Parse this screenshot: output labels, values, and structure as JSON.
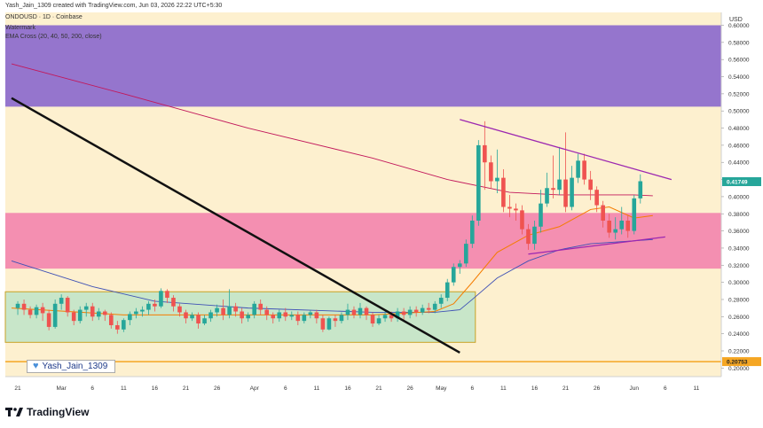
{
  "header": {
    "creator": "Yash_Jain_1309 created with TradingView.com, Jun 03, 2026 22:22 UTC+5:30",
    "symbol": "ONDOUSD · 1D · Coinbase",
    "indicator1": "Watermark",
    "indicator2": "EMA Cross (20, 40, 50, 200, close)"
  },
  "watermark": {
    "label": "Yash_Jain_1309",
    "icon": "heart-icon"
  },
  "footer": {
    "brand": "TradingView",
    "logo": "tradingview-logo-icon"
  },
  "chart_data": {
    "type": "candlestick",
    "currency": "USD",
    "ylim": [
      0.19,
      0.615
    ],
    "y_ticks": [
      "0.60000",
      "0.58000",
      "0.56000",
      "0.54000",
      "0.52000",
      "0.50000",
      "0.48000",
      "0.46000",
      "0.44000",
      "0.42000",
      "0.40000",
      "0.38000",
      "0.36000",
      "0.34000",
      "0.32000",
      "0.30000",
      "0.28000",
      "0.26000",
      "0.24000",
      "0.22000",
      "0.20000"
    ],
    "x_ticks": [
      {
        "label": "21",
        "day": -7
      },
      {
        "label": "Mar",
        "day": 0
      },
      {
        "label": "6",
        "day": 5
      },
      {
        "label": "11",
        "day": 10
      },
      {
        "label": "16",
        "day": 15
      },
      {
        "label": "21",
        "day": 20
      },
      {
        "label": "26",
        "day": 25
      },
      {
        "label": "Apr",
        "day": 31
      },
      {
        "label": "6",
        "day": 36
      },
      {
        "label": "11",
        "day": 41
      },
      {
        "label": "16",
        "day": 46
      },
      {
        "label": "21",
        "day": 51
      },
      {
        "label": "26",
        "day": 56
      },
      {
        "label": "May",
        "day": 61
      },
      {
        "label": "6",
        "day": 66
      },
      {
        "label": "11",
        "day": 71
      },
      {
        "label": "16",
        "day": 76
      },
      {
        "label": "21",
        "day": 81
      },
      {
        "label": "26",
        "day": 86
      },
      {
        "label": "Jun",
        "day": 92
      },
      {
        "label": "6",
        "day": 97
      },
      {
        "label": "11",
        "day": 102
      }
    ],
    "last_price": "0.41749",
    "level_price": "0.20753",
    "colors": {
      "up": "#26a69a",
      "down": "#ef5350",
      "zone_purple": "#9575cd",
      "zone_pink": "#f48fb1",
      "zone_green": "#c8e6c9",
      "level": "#f5a623",
      "trend": "#111111",
      "pattern": "#9c27b0"
    },
    "zones": [
      {
        "name": "purple",
        "y1": 0.505,
        "y2": 0.6
      },
      {
        "name": "pink",
        "y1": 0.316,
        "y2": 0.381
      },
      {
        "name": "green",
        "y1": 0.23,
        "y2": 0.289
      }
    ],
    "level": 0.2075,
    "trendline": [
      [
        -8,
        0.515
      ],
      [
        64,
        0.218
      ]
    ],
    "wedge_upper": [
      [
        64,
        0.49
      ],
      [
        98,
        0.42
      ]
    ],
    "wedge_lower": [
      [
        75,
        0.333
      ],
      [
        97,
        0.353
      ]
    ],
    "ema200": [
      [
        -8,
        0.555
      ],
      [
        10,
        0.52
      ],
      [
        30,
        0.48
      ],
      [
        50,
        0.445
      ],
      [
        62,
        0.42
      ],
      [
        72,
        0.405
      ],
      [
        80,
        0.402
      ],
      [
        92,
        0.402
      ],
      [
        95,
        0.401
      ]
    ],
    "ema50": [
      [
        -8,
        0.325
      ],
      [
        5,
        0.295
      ],
      [
        15,
        0.278
      ],
      [
        30,
        0.27
      ],
      [
        50,
        0.265
      ],
      [
        60,
        0.265
      ],
      [
        64,
        0.268
      ],
      [
        66,
        0.28
      ],
      [
        70,
        0.305
      ],
      [
        75,
        0.325
      ],
      [
        80,
        0.338
      ],
      [
        85,
        0.345
      ],
      [
        95,
        0.35
      ]
    ],
    "ema20": [
      [
        -8,
        0.27
      ],
      [
        10,
        0.262
      ],
      [
        30,
        0.262
      ],
      [
        50,
        0.262
      ],
      [
        60,
        0.266
      ],
      [
        63,
        0.275
      ],
      [
        66,
        0.3
      ],
      [
        70,
        0.335
      ],
      [
        75,
        0.355
      ],
      [
        80,
        0.365
      ],
      [
        85,
        0.385
      ],
      [
        88,
        0.388
      ],
      [
        92,
        0.375
      ],
      [
        95,
        0.378
      ]
    ],
    "candles": [
      [
        -7,
        0.27,
        0.275,
        0.262,
        0.278
      ],
      [
        -6,
        0.275,
        0.268,
        0.262,
        0.28
      ],
      [
        -5,
        0.268,
        0.262,
        0.258,
        0.272
      ],
      [
        -4,
        0.262,
        0.271,
        0.258,
        0.274
      ],
      [
        -3,
        0.271,
        0.264,
        0.255,
        0.276
      ],
      [
        -2,
        0.264,
        0.248,
        0.244,
        0.268
      ],
      [
        -1,
        0.248,
        0.275,
        0.246,
        0.28
      ],
      [
        0,
        0.275,
        0.282,
        0.268,
        0.286
      ],
      [
        1,
        0.282,
        0.265,
        0.26,
        0.284
      ],
      [
        2,
        0.265,
        0.255,
        0.25,
        0.268
      ],
      [
        3,
        0.255,
        0.268,
        0.252,
        0.272
      ],
      [
        4,
        0.268,
        0.272,
        0.26,
        0.276
      ],
      [
        5,
        0.272,
        0.26,
        0.255,
        0.276
      ],
      [
        6,
        0.26,
        0.266,
        0.256,
        0.27
      ],
      [
        7,
        0.266,
        0.262,
        0.255,
        0.268
      ],
      [
        8,
        0.262,
        0.25,
        0.246,
        0.265
      ],
      [
        9,
        0.25,
        0.245,
        0.24,
        0.255
      ],
      [
        10,
        0.245,
        0.256,
        0.242,
        0.258
      ],
      [
        11,
        0.256,
        0.263,
        0.25,
        0.266
      ],
      [
        12,
        0.263,
        0.266,
        0.258,
        0.27
      ],
      [
        13,
        0.266,
        0.268,
        0.26,
        0.272
      ],
      [
        14,
        0.268,
        0.275,
        0.262,
        0.278
      ],
      [
        15,
        0.275,
        0.272,
        0.266,
        0.28
      ],
      [
        16,
        0.272,
        0.29,
        0.27,
        0.293
      ],
      [
        17,
        0.29,
        0.282,
        0.276,
        0.292
      ],
      [
        18,
        0.282,
        0.272,
        0.266,
        0.285
      ],
      [
        19,
        0.272,
        0.265,
        0.26,
        0.275
      ],
      [
        20,
        0.265,
        0.258,
        0.252,
        0.268
      ],
      [
        21,
        0.258,
        0.262,
        0.255,
        0.265
      ],
      [
        22,
        0.262,
        0.252,
        0.246,
        0.265
      ],
      [
        23,
        0.252,
        0.258,
        0.25,
        0.262
      ],
      [
        24,
        0.258,
        0.265,
        0.254,
        0.268
      ],
      [
        25,
        0.265,
        0.27,
        0.26,
        0.274
      ],
      [
        26,
        0.27,
        0.262,
        0.256,
        0.28
      ],
      [
        27,
        0.262,
        0.272,
        0.258,
        0.292
      ],
      [
        28,
        0.272,
        0.266,
        0.26,
        0.276
      ],
      [
        29,
        0.266,
        0.258,
        0.252,
        0.27
      ],
      [
        30,
        0.258,
        0.262,
        0.254,
        0.265
      ],
      [
        31,
        0.262,
        0.275,
        0.258,
        0.278
      ],
      [
        32,
        0.275,
        0.268,
        0.262,
        0.28
      ],
      [
        33,
        0.268,
        0.262,
        0.256,
        0.272
      ],
      [
        34,
        0.262,
        0.258,
        0.252,
        0.265
      ],
      [
        35,
        0.258,
        0.265,
        0.254,
        0.268
      ],
      [
        36,
        0.265,
        0.26,
        0.255,
        0.27
      ],
      [
        37,
        0.26,
        0.262,
        0.256,
        0.266
      ],
      [
        38,
        0.262,
        0.255,
        0.25,
        0.266
      ],
      [
        39,
        0.255,
        0.262,
        0.252,
        0.265
      ],
      [
        40,
        0.262,
        0.265,
        0.258,
        0.268
      ],
      [
        41,
        0.265,
        0.258,
        0.252,
        0.268
      ],
      [
        42,
        0.258,
        0.245,
        0.242,
        0.262
      ],
      [
        43,
        0.245,
        0.258,
        0.244,
        0.26
      ],
      [
        44,
        0.258,
        0.255,
        0.248,
        0.262
      ],
      [
        45,
        0.255,
        0.262,
        0.252,
        0.265
      ],
      [
        46,
        0.262,
        0.268,
        0.256,
        0.275
      ],
      [
        47,
        0.268,
        0.262,
        0.258,
        0.272
      ],
      [
        48,
        0.262,
        0.27,
        0.258,
        0.276
      ],
      [
        49,
        0.27,
        0.262,
        0.256,
        0.272
      ],
      [
        50,
        0.262,
        0.252,
        0.248,
        0.265
      ],
      [
        51,
        0.252,
        0.258,
        0.25,
        0.262
      ],
      [
        52,
        0.258,
        0.262,
        0.254,
        0.266
      ],
      [
        53,
        0.262,
        0.258,
        0.254,
        0.266
      ],
      [
        54,
        0.258,
        0.266,
        0.254,
        0.27
      ],
      [
        55,
        0.266,
        0.262,
        0.256,
        0.27
      ],
      [
        56,
        0.262,
        0.268,
        0.258,
        0.272
      ],
      [
        57,
        0.268,
        0.265,
        0.26,
        0.272
      ],
      [
        58,
        0.265,
        0.27,
        0.262,
        0.274
      ],
      [
        59,
        0.27,
        0.268,
        0.264,
        0.276
      ],
      [
        60,
        0.268,
        0.275,
        0.264,
        0.278
      ],
      [
        61,
        0.275,
        0.282,
        0.27,
        0.286
      ],
      [
        62,
        0.282,
        0.3,
        0.278,
        0.304
      ],
      [
        63,
        0.3,
        0.318,
        0.296,
        0.322
      ],
      [
        64,
        0.318,
        0.322,
        0.31,
        0.326
      ],
      [
        65,
        0.322,
        0.345,
        0.318,
        0.35
      ],
      [
        66,
        0.345,
        0.372,
        0.34,
        0.378
      ],
      [
        67,
        0.372,
        0.46,
        0.366,
        0.466
      ],
      [
        68,
        0.46,
        0.44,
        0.408,
        0.488
      ],
      [
        69,
        0.44,
        0.418,
        0.41,
        0.448
      ],
      [
        70,
        0.418,
        0.422,
        0.404,
        0.455
      ],
      [
        71,
        0.422,
        0.388,
        0.382,
        0.432
      ],
      [
        72,
        0.388,
        0.386,
        0.376,
        0.402
      ],
      [
        73,
        0.386,
        0.384,
        0.372,
        0.392
      ],
      [
        74,
        0.384,
        0.362,
        0.356,
        0.39
      ],
      [
        75,
        0.362,
        0.345,
        0.338,
        0.368
      ],
      [
        76,
        0.345,
        0.365,
        0.338,
        0.372
      ],
      [
        77,
        0.365,
        0.392,
        0.358,
        0.408
      ],
      [
        78,
        0.392,
        0.41,
        0.388,
        0.428
      ],
      [
        79,
        0.41,
        0.408,
        0.398,
        0.448
      ],
      [
        80,
        0.408,
        0.42,
        0.402,
        0.458
      ],
      [
        81,
        0.42,
        0.388,
        0.382,
        0.475
      ],
      [
        82,
        0.388,
        0.422,
        0.384,
        0.436
      ],
      [
        83,
        0.422,
        0.442,
        0.416,
        0.45
      ],
      [
        84,
        0.442,
        0.42,
        0.414,
        0.45
      ],
      [
        85,
        0.42,
        0.408,
        0.396,
        0.43
      ],
      [
        86,
        0.408,
        0.39,
        0.382,
        0.412
      ],
      [
        87,
        0.39,
        0.372,
        0.364,
        0.395
      ],
      [
        88,
        0.372,
        0.358,
        0.352,
        0.38
      ],
      [
        89,
        0.358,
        0.362,
        0.35,
        0.376
      ],
      [
        90,
        0.362,
        0.372,
        0.356,
        0.388
      ],
      [
        91,
        0.372,
        0.36,
        0.352,
        0.378
      ],
      [
        92,
        0.36,
        0.398,
        0.356,
        0.402
      ],
      [
        93,
        0.398,
        0.418,
        0.392,
        0.426
      ]
    ]
  }
}
